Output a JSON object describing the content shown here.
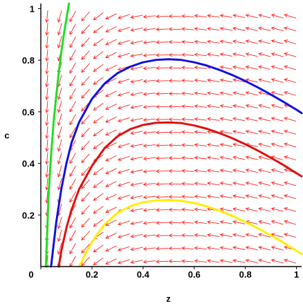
{
  "chart_data": {
    "type": "direction-field",
    "xlabel": "z",
    "ylabel": "c",
    "xlim": [
      0,
      1.02
    ],
    "ylim": [
      0,
      1.02
    ],
    "x_ticks": [
      {
        "value": 0,
        "label": "0"
      },
      {
        "value": 0.2,
        "label": "0.2"
      },
      {
        "value": 0.4,
        "label": "0.4"
      },
      {
        "value": 0.6,
        "label": "0.6"
      },
      {
        "value": 0.8,
        "label": "0.8"
      },
      {
        "value": 1,
        "label": "1"
      }
    ],
    "y_ticks": [
      {
        "value": 0,
        "label": "0"
      },
      {
        "value": 0.2,
        "label": "0.2"
      },
      {
        "value": 0.4,
        "label": "0.4"
      },
      {
        "value": 0.6,
        "label": "0.6"
      },
      {
        "value": 0.8,
        "label": "0.8"
      },
      {
        "value": 1,
        "label": "1"
      }
    ],
    "field": {
      "color": "#ff2020",
      "slope_relation": "dc/dz proportional to (0.5 - z)/z",
      "z_samples": [
        0.025,
        0.075,
        0.125,
        0.175,
        0.225,
        0.275,
        0.325,
        0.375,
        0.425,
        0.475,
        0.525,
        0.575,
        0.625,
        0.675,
        0.725,
        0.775,
        0.825,
        0.875,
        0.925,
        0.975
      ],
      "c_samples": [
        0.02,
        0.07,
        0.12,
        0.17,
        0.22,
        0.27,
        0.32,
        0.37,
        0.42,
        0.47,
        0.52,
        0.57,
        0.62,
        0.67,
        0.72,
        0.77,
        0.82,
        0.87,
        0.92,
        0.97
      ]
    },
    "series": [
      {
        "color": "#22dd22",
        "points": [
          [
            0.02,
            0.0
          ],
          [
            0.03,
            0.27
          ],
          [
            0.04,
            0.43
          ],
          [
            0.05,
            0.56
          ],
          [
            0.06,
            0.66
          ],
          [
            0.07,
            0.75
          ],
          [
            0.08,
            0.83
          ],
          [
            0.09,
            0.9
          ],
          [
            0.1,
            0.96
          ],
          [
            0.11,
            1.02
          ]
        ]
      },
      {
        "color": "#1010dd",
        "points": [
          [
            0.04,
            0.0
          ],
          [
            0.06,
            0.17
          ],
          [
            0.08,
            0.3
          ],
          [
            0.1,
            0.4
          ],
          [
            0.12,
            0.48
          ],
          [
            0.15,
            0.56
          ],
          [
            0.2,
            0.65
          ],
          [
            0.25,
            0.71
          ],
          [
            0.3,
            0.75
          ],
          [
            0.35,
            0.775
          ],
          [
            0.4,
            0.792
          ],
          [
            0.45,
            0.801
          ],
          [
            0.5,
            0.804
          ],
          [
            0.55,
            0.801
          ],
          [
            0.6,
            0.792
          ],
          [
            0.65,
            0.779
          ],
          [
            0.7,
            0.762
          ],
          [
            0.75,
            0.742
          ],
          [
            0.8,
            0.719
          ],
          [
            0.85,
            0.694
          ],
          [
            0.9,
            0.667
          ],
          [
            0.95,
            0.638
          ],
          [
            1.0,
            0.608
          ],
          [
            1.02,
            0.595
          ]
        ]
      },
      {
        "color": "#dd1010",
        "points": [
          [
            0.07,
            0.0
          ],
          [
            0.08,
            0.06
          ],
          [
            0.1,
            0.15
          ],
          [
            0.12,
            0.22
          ],
          [
            0.15,
            0.3
          ],
          [
            0.2,
            0.39
          ],
          [
            0.25,
            0.46
          ],
          [
            0.3,
            0.505
          ],
          [
            0.35,
            0.533
          ],
          [
            0.4,
            0.549
          ],
          [
            0.45,
            0.557
          ],
          [
            0.5,
            0.559
          ],
          [
            0.55,
            0.556
          ],
          [
            0.6,
            0.547
          ],
          [
            0.65,
            0.534
          ],
          [
            0.7,
            0.517
          ],
          [
            0.75,
            0.497
          ],
          [
            0.8,
            0.474
          ],
          [
            0.85,
            0.449
          ],
          [
            0.9,
            0.422
          ],
          [
            0.95,
            0.393
          ],
          [
            1.0,
            0.362
          ],
          [
            1.02,
            0.35
          ]
        ]
      },
      {
        "color": "#ffee00",
        "points": [
          [
            0.15,
            0.0
          ],
          [
            0.18,
            0.06
          ],
          [
            0.2,
            0.095
          ],
          [
            0.25,
            0.165
          ],
          [
            0.3,
            0.208
          ],
          [
            0.35,
            0.234
          ],
          [
            0.4,
            0.249
          ],
          [
            0.45,
            0.256
          ],
          [
            0.5,
            0.258
          ],
          [
            0.55,
            0.255
          ],
          [
            0.6,
            0.246
          ],
          [
            0.65,
            0.233
          ],
          [
            0.7,
            0.216
          ],
          [
            0.75,
            0.196
          ],
          [
            0.8,
            0.173
          ],
          [
            0.85,
            0.148
          ],
          [
            0.9,
            0.121
          ],
          [
            0.95,
            0.092
          ],
          [
            1.0,
            0.061
          ],
          [
            1.02,
            0.048
          ]
        ]
      }
    ],
    "grid": false,
    "legend": "none"
  }
}
